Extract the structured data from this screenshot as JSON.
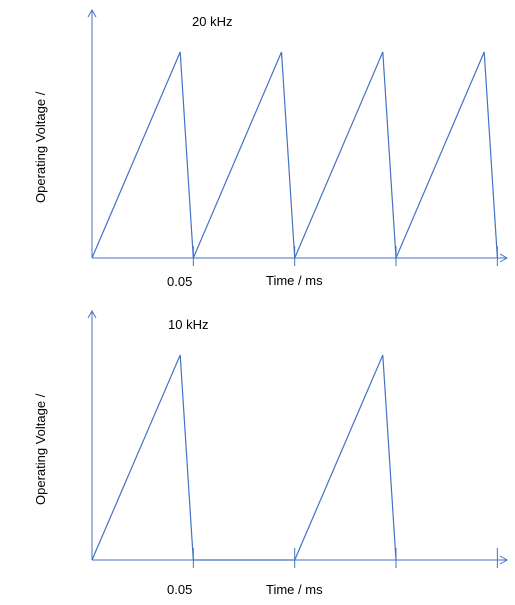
{
  "chart_data": [
    {
      "type": "line",
      "title": "20 kHz",
      "xlabel": "Time / ms",
      "ylabel": "Operating Voltage /",
      "x_tick_labels": [
        "0.05"
      ],
      "x_tick_values": [
        0.05
      ],
      "xlim": [
        0,
        0.224
      ],
      "ylim": [
        0,
        1
      ],
      "grid": false,
      "accent_color": "#4472C4",
      "series": [
        {
          "x": [
            0,
            0.0435,
            0.05,
            0.0935,
            0.1,
            0.1435,
            0.15,
            0.1935,
            0.2
          ],
          "y": [
            0,
            1,
            0,
            1,
            0,
            1,
            0,
            1,
            0
          ]
        }
      ]
    },
    {
      "type": "line",
      "title": "10 kHz",
      "xlabel": "Time / ms",
      "ylabel": "Operating Voltage /",
      "x_tick_labels": [
        "0.05"
      ],
      "x_tick_values": [
        0.05
      ],
      "xlim": [
        0,
        0.224
      ],
      "ylim": [
        0,
        1
      ],
      "grid": false,
      "accent_color": "#4472C4",
      "series": [
        {
          "x": [
            0,
            0.0435,
            0.05,
            0.1,
            0.1435,
            0.15
          ],
          "y": [
            0,
            1,
            0,
            0,
            1,
            0
          ]
        }
      ]
    }
  ]
}
